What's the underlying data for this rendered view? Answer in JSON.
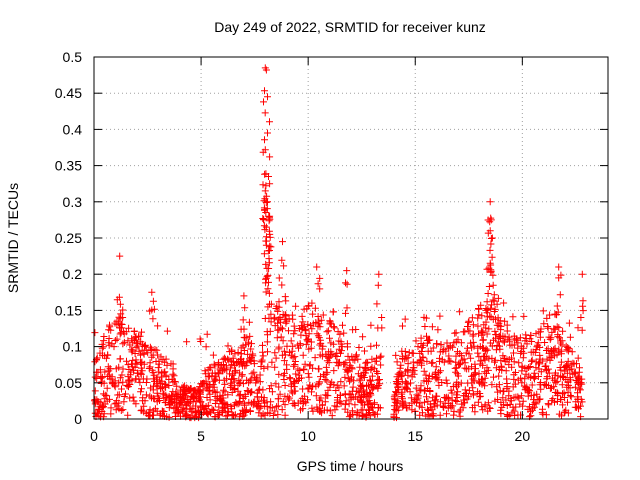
{
  "chart_data": {
    "type": "scatter",
    "title": "Day 249 of 2022, SRMTID for receiver kunz",
    "xlabel": "GPS time / hours",
    "ylabel": "SRMTID / TECUs",
    "xlim": [
      0,
      24
    ],
    "ylim": [
      0,
      0.5
    ],
    "x_ticks": [
      0,
      5,
      10,
      15,
      20
    ],
    "x_tick_labels": [
      "0",
      "5",
      "10",
      "15",
      "20"
    ],
    "y_ticks": [
      0,
      0.05,
      0.1,
      0.15,
      0.2,
      0.25,
      0.3,
      0.35,
      0.4,
      0.45,
      0.5
    ],
    "y_tick_labels": [
      "0",
      "0.05",
      "0.1",
      "0.15",
      "0.2",
      "0.25",
      "0.3",
      "0.35",
      "0.4",
      "0.45",
      "0.5"
    ],
    "grid": true,
    "marker": "+",
    "color": "#ff0000",
    "series": [
      {
        "name": "SRMTID",
        "segments": [
          {
            "x_start": 0.0,
            "x_end": 13.4,
            "level_profile": [
              [
                0.0,
                0.04
              ],
              [
                0.5,
                0.06
              ],
              [
                1.2,
                0.08
              ],
              [
                2.0,
                0.06
              ],
              [
                3.0,
                0.05
              ],
              [
                4.0,
                0.025
              ],
              [
                4.8,
                0.02
              ],
              [
                5.5,
                0.04
              ],
              [
                6.5,
                0.05
              ],
              [
                7.3,
                0.06
              ],
              [
                7.7,
                0.02
              ],
              [
                8.0,
                0.09
              ],
              [
                8.5,
                0.09
              ],
              [
                9.5,
                0.07
              ],
              [
                10.3,
                0.09
              ],
              [
                11.0,
                0.07
              ],
              [
                12.0,
                0.05
              ],
              [
                12.8,
                0.04
              ],
              [
                13.4,
                0.05
              ]
            ]
          },
          {
            "x_start": 14.0,
            "x_end": 22.8,
            "level_profile": [
              [
                14.0,
                0.02
              ],
              [
                14.5,
                0.05
              ],
              [
                15.5,
                0.06
              ],
              [
                16.5,
                0.05
              ],
              [
                17.5,
                0.07
              ],
              [
                18.5,
                0.09
              ],
              [
                19.5,
                0.06
              ],
              [
                20.5,
                0.06
              ],
              [
                21.5,
                0.08
              ],
              [
                22.2,
                0.05
              ],
              [
                22.8,
                0.04
              ]
            ]
          }
        ],
        "peaks": [
          {
            "x": 1.2,
            "y": 0.225
          },
          {
            "x": 2.7,
            "y": 0.175
          },
          {
            "x": 7.0,
            "y": 0.17
          },
          {
            "x": 8.0,
            "y": 0.485
          },
          {
            "x": 8.05,
            "y": 0.482
          },
          {
            "x": 8.1,
            "y": 0.445
          },
          {
            "x": 8.1,
            "y": 0.395
          },
          {
            "x": 8.0,
            "y": 0.372
          },
          {
            "x": 8.15,
            "y": 0.335
          },
          {
            "x": 8.2,
            "y": 0.325
          },
          {
            "x": 8.0,
            "y": 0.315
          },
          {
            "x": 8.1,
            "y": 0.3
          },
          {
            "x": 8.2,
            "y": 0.28
          },
          {
            "x": 8.05,
            "y": 0.265
          },
          {
            "x": 8.8,
            "y": 0.245
          },
          {
            "x": 10.4,
            "y": 0.21
          },
          {
            "x": 11.8,
            "y": 0.205
          },
          {
            "x": 13.3,
            "y": 0.2
          },
          {
            "x": 18.5,
            "y": 0.3
          },
          {
            "x": 18.55,
            "y": 0.275
          },
          {
            "x": 18.5,
            "y": 0.26
          },
          {
            "x": 18.6,
            "y": 0.25
          },
          {
            "x": 18.5,
            "y": 0.215
          },
          {
            "x": 21.7,
            "y": 0.21
          },
          {
            "x": 22.8,
            "y": 0.2
          }
        ]
      }
    ]
  }
}
